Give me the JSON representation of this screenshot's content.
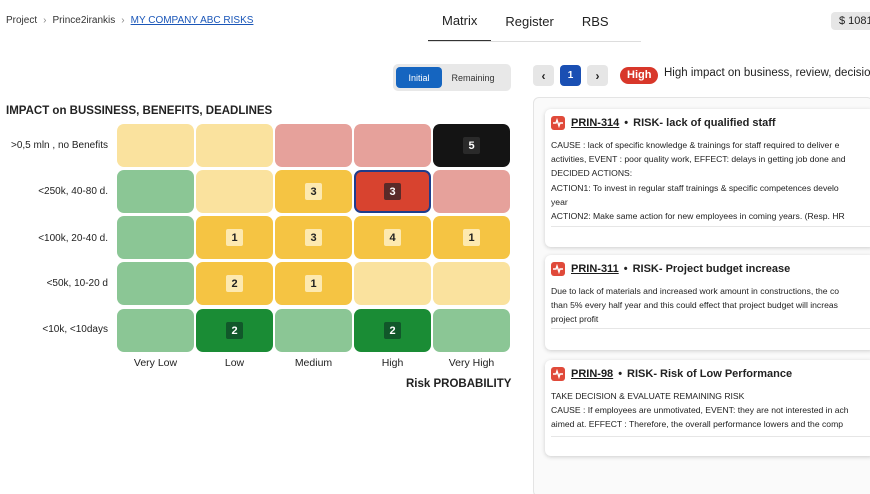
{
  "breadcrumb": {
    "items": [
      "Project",
      "Prince2irankis",
      "MY COMPANY ABC RISKS"
    ]
  },
  "tabs": [
    "Matrix",
    "Register",
    "RBS"
  ],
  "active_tab": "Matrix",
  "price": "$ 1081",
  "toggle": {
    "initial": "Initial",
    "remaining": "Remaining",
    "selected": "Initial"
  },
  "matrix": {
    "impact_title": "IMPACT on BUSSINESS, BENEFITS, DEADLINES",
    "probability_title": "Risk PROBABILITY",
    "row_labels": [
      ">0,5 mln , no Benefits",
      "<250k, 40-80 d.",
      "<100k, 20-40 d.",
      "<50k, 10-20 d",
      "<10k, <10days"
    ],
    "col_labels": [
      "Very Low",
      "Low",
      "Medium",
      "High",
      "Very High"
    ],
    "counts": [
      [
        "",
        "",
        "",
        "",
        "5"
      ],
      [
        "",
        "",
        "3",
        "3",
        ""
      ],
      [
        "",
        "1",
        "3",
        "4",
        "1"
      ],
      [
        "",
        "2",
        "1",
        "",
        ""
      ],
      [
        "",
        "2",
        "",
        "2",
        ""
      ]
    ],
    "colors": {
      "light_yellow": "#fae29e",
      "yellow": "#f5c443",
      "pink": "#e6a19b",
      "red": "#d8432f",
      "black": "#141414",
      "light_green": "#8bc695",
      "dark_green": "#1a8c35",
      "selected_border": "#1f3c8a"
    },
    "selected_cell": "<250k, 40-80 d. / High"
  },
  "pagination": {
    "prev": "‹",
    "page": "1",
    "next": "›"
  },
  "level": {
    "badge": "High",
    "description": "High impact on business, review, decision a"
  },
  "cards": [
    {
      "id": "PRIN-314",
      "title": "RISK- lack of qualified staff",
      "lines": [
        "CAUSE : lack of specific knowledge & trainings for staff required to deliver e",
        "activities, EVENT : poor quality work, EFFECT: delays in getting job done and",
        "DECIDED ACTIONS:",
        "ACTION1: To invest in regular staff trainings & specific competences develo",
        "year",
        "ACTION2: Make same action for new employees in coming years. (Resp. HR"
      ]
    },
    {
      "id": "PRIN-311",
      "title": "RISK- Project budget increase",
      "lines": [
        "Due to lack of materials and increased work amount in constructions, the co",
        "than 5% every half year and this could effect that project budget will increas",
        "project profit"
      ]
    },
    {
      "id": "PRIN-98",
      "title": "RISK- Risk of Low Performance",
      "lines": [
        "TAKE DECISION & EVALUATE REMAINING RISK",
        "CAUSE : If employees are unmotivated, EVENT: they are not interested in ach",
        "aimed at. EFFECT : Therefore, the overall performance lowers and the comp"
      ]
    }
  ]
}
